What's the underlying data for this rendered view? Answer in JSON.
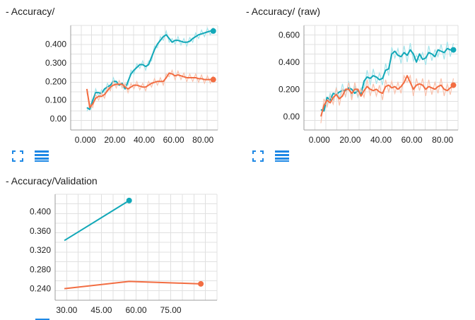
{
  "colors": {
    "teal": "#12a8b8",
    "orange": "#f26d42",
    "teal_light": "#a6e4eb",
    "orange_light": "#f9c2ad",
    "icon": "#1e88e5"
  },
  "icons": {
    "expand": "fullscreen-icon",
    "data": "list-icon"
  },
  "chart_data": [
    {
      "type": "line",
      "title": "- Accuracy/",
      "xlim": [
        -10,
        90
      ],
      "ylim": [
        -0.06,
        0.5
      ],
      "xticks": [
        "0.000",
        "20.00",
        "40.00",
        "60.00",
        "80.00"
      ],
      "xtick_values": [
        0,
        20,
        40,
        60,
        80
      ],
      "yticks": [
        "0.00",
        "0.100",
        "0.200",
        "0.300",
        "0.400"
      ],
      "ytick_values": [
        0,
        0.1,
        0.2,
        0.3,
        0.4
      ],
      "grid": true,
      "series": [
        {
          "color": "teal",
          "x": [
            1,
            3,
            5,
            7,
            9,
            11,
            13,
            15,
            17,
            19,
            21,
            23,
            25,
            27,
            29,
            31,
            33,
            35,
            37,
            39,
            41,
            43,
            45,
            47,
            49,
            51,
            53,
            55,
            57,
            59,
            61,
            63,
            65,
            67,
            69,
            71,
            73,
            75,
            77,
            79,
            81,
            83,
            85,
            87
          ],
          "y": [
            0.06,
            0.05,
            0.1,
            0.14,
            0.14,
            0.135,
            0.16,
            0.17,
            0.18,
            0.2,
            0.2,
            0.18,
            0.19,
            0.16,
            0.2,
            0.24,
            0.26,
            0.275,
            0.29,
            0.29,
            0.28,
            0.29,
            0.33,
            0.37,
            0.4,
            0.42,
            0.44,
            0.45,
            0.43,
            0.41,
            0.42,
            0.42,
            0.415,
            0.41,
            0.41,
            0.415,
            0.43,
            0.44,
            0.45,
            0.455,
            0.46,
            0.465,
            0.47,
            0.47
          ]
        },
        {
          "color": "orange",
          "x": [
            1,
            3,
            5,
            7,
            9,
            11,
            13,
            15,
            17,
            19,
            21,
            23,
            25,
            27,
            29,
            31,
            33,
            35,
            37,
            39,
            41,
            43,
            45,
            47,
            49,
            51,
            53,
            55,
            57,
            59,
            61,
            63,
            65,
            67,
            69,
            71,
            73,
            75,
            77,
            79,
            81,
            83,
            85,
            87
          ],
          "y": [
            0.16,
            0.06,
            0.08,
            0.11,
            0.12,
            0.12,
            0.13,
            0.15,
            0.17,
            0.18,
            0.185,
            0.185,
            0.185,
            0.17,
            0.16,
            0.17,
            0.18,
            0.18,
            0.175,
            0.17,
            0.17,
            0.18,
            0.19,
            0.195,
            0.2,
            0.2,
            0.2,
            0.22,
            0.245,
            0.24,
            0.23,
            0.235,
            0.23,
            0.225,
            0.22,
            0.22,
            0.22,
            0.22,
            0.215,
            0.215,
            0.21,
            0.21,
            0.21,
            0.21
          ]
        }
      ]
    },
    {
      "type": "line",
      "title": "- Accuracy/ (raw)",
      "xlim": [
        -10,
        90
      ],
      "ylim": [
        -0.1,
        0.67
      ],
      "xticks": [
        "0.000",
        "20.00",
        "40.00",
        "60.00",
        "80.00"
      ],
      "xtick_values": [
        0,
        20,
        40,
        60,
        80
      ],
      "yticks": [
        "0.00",
        "0.200",
        "0.400",
        "0.600"
      ],
      "ytick_values": [
        0,
        0.2,
        0.4,
        0.6
      ],
      "grid": true,
      "series": [
        {
          "color": "teal",
          "x": [
            1,
            3,
            5,
            7,
            9,
            11,
            13,
            15,
            17,
            19,
            21,
            23,
            25,
            27,
            29,
            31,
            33,
            35,
            37,
            39,
            41,
            43,
            45,
            47,
            49,
            51,
            53,
            55,
            57,
            59,
            61,
            63,
            65,
            67,
            69,
            71,
            73,
            75,
            77,
            79,
            81,
            83,
            85,
            87
          ],
          "y": [
            0.05,
            0.04,
            0.14,
            0.12,
            0.17,
            0.16,
            0.18,
            0.19,
            0.19,
            0.21,
            0.2,
            0.17,
            0.19,
            0.16,
            0.26,
            0.29,
            0.28,
            0.3,
            0.29,
            0.27,
            0.28,
            0.34,
            0.35,
            0.46,
            0.48,
            0.45,
            0.44,
            0.47,
            0.45,
            0.49,
            0.46,
            0.4,
            0.46,
            0.42,
            0.43,
            0.47,
            0.46,
            0.44,
            0.49,
            0.48,
            0.47,
            0.5,
            0.49,
            0.49
          ]
        },
        {
          "color": "orange",
          "x": [
            1,
            3,
            5,
            7,
            9,
            11,
            13,
            15,
            17,
            19,
            21,
            23,
            25,
            27,
            29,
            31,
            33,
            35,
            37,
            39,
            41,
            43,
            45,
            47,
            49,
            51,
            53,
            55,
            57,
            59,
            61,
            63,
            65,
            67,
            69,
            71,
            73,
            75,
            77,
            79,
            81,
            83,
            85,
            87
          ],
          "y": [
            0.0,
            0.08,
            0.12,
            0.1,
            0.14,
            0.16,
            0.13,
            0.15,
            0.2,
            0.2,
            0.17,
            0.2,
            0.2,
            0.15,
            0.19,
            0.22,
            0.2,
            0.19,
            0.2,
            0.18,
            0.17,
            0.22,
            0.23,
            0.21,
            0.22,
            0.2,
            0.22,
            0.25,
            0.3,
            0.25,
            0.2,
            0.23,
            0.24,
            0.23,
            0.2,
            0.22,
            0.21,
            0.2,
            0.22,
            0.23,
            0.2,
            0.19,
            0.21,
            0.23
          ]
        }
      ]
    },
    {
      "type": "line",
      "title": "- Accuracy/Validation",
      "xlim": [
        25,
        95
      ],
      "ylim": [
        0.216,
        0.436
      ],
      "xticks": [
        "30.00",
        "45.00",
        "60.00",
        "75.00"
      ],
      "xtick_values": [
        30,
        45,
        60,
        75
      ],
      "yticks": [
        "0.240",
        "0.280",
        "0.320",
        "0.360",
        "0.400"
      ],
      "ytick_values": [
        0.24,
        0.28,
        0.32,
        0.36,
        0.4
      ],
      "grid": true,
      "series": [
        {
          "color": "teal",
          "x": [
            29,
            57
          ],
          "y": [
            0.34,
            0.423
          ]
        },
        {
          "color": "orange",
          "x": [
            29,
            57,
            88
          ],
          "y": [
            0.24,
            0.255,
            0.25
          ]
        }
      ]
    }
  ]
}
